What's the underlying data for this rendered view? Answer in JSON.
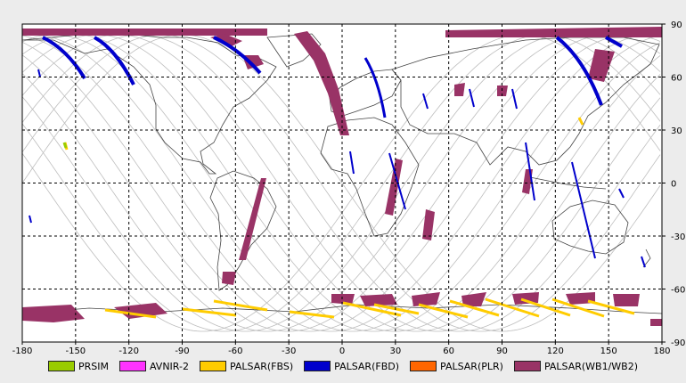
{
  "map": {
    "projection": "equirectangular",
    "lon_range": [
      -180,
      180
    ],
    "lat_range": [
      -90,
      90
    ],
    "grid": true,
    "x_ticks": [
      "-180",
      "-150",
      "-120",
      "-90",
      "-60",
      "-30",
      "0",
      "30",
      "60",
      "90",
      "120",
      "150",
      "180"
    ],
    "y_ticks": [
      "90",
      "60",
      "30",
      "0",
      "-30",
      "-60",
      "-90"
    ],
    "colors": {
      "background": "#ffffff",
      "grid": "#000000",
      "coast": "#444444",
      "orbits": "#bdbdbd"
    }
  },
  "legend": [
    {
      "label": "PRSIM",
      "color": "#99cc00"
    },
    {
      "label": "AVNIR-2",
      "color": "#ff33ff"
    },
    {
      "label": "PALSAR(FBS)",
      "color": "#ffcc00"
    },
    {
      "label": "PALSAR(FBD)",
      "color": "#0000cc"
    },
    {
      "label": "PALSAR(PLR)",
      "color": "#ff6600"
    },
    {
      "label": "PALSAR(WB1/WB2)",
      "color": "#993366"
    }
  ]
}
